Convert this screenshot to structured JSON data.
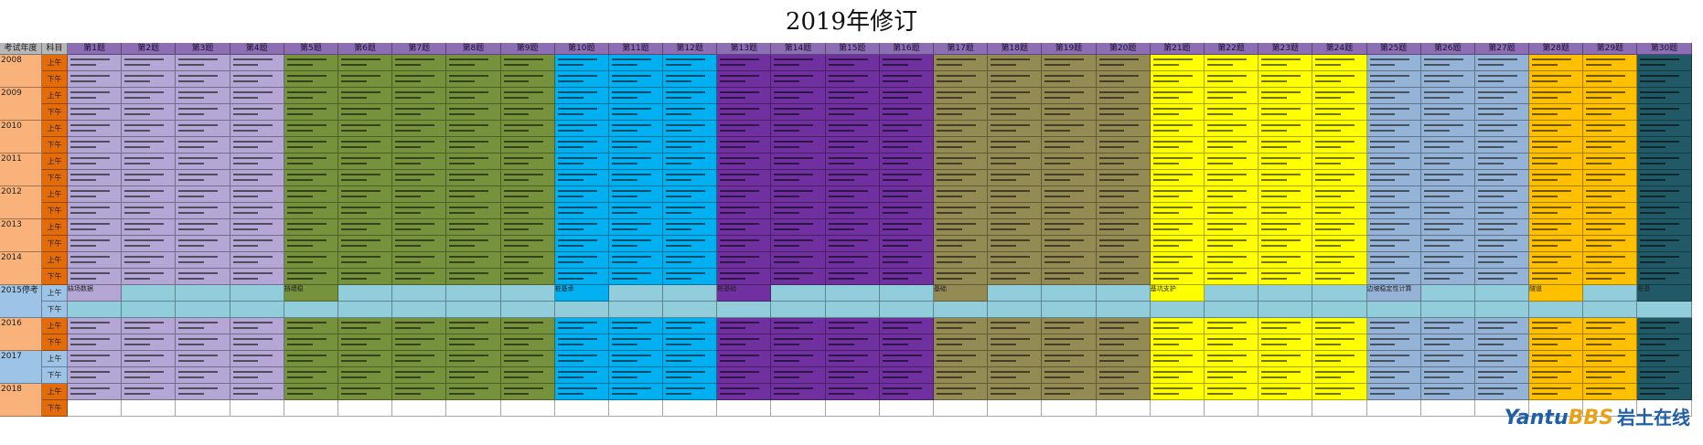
{
  "title": "2019年修订",
  "header": {
    "year_label": "考试年度",
    "subject_label": "科目",
    "questions": [
      "第1题",
      "第2题",
      "第3题",
      "第4题",
      "第5题",
      "第6题",
      "第7题",
      "第8题",
      "第9题",
      "第10题",
      "第11题",
      "第12题",
      "第13题",
      "第14题",
      "第15题",
      "第16题",
      "第17题",
      "第18题",
      "第19题",
      "第20题",
      "第21题",
      "第22题",
      "第23题",
      "第24题",
      "第25题",
      "第26题",
      "第27题",
      "第28题",
      "第29题",
      "第30题"
    ]
  },
  "palette": {
    "lavender": "#b4a7d6",
    "olive": "#76923c",
    "cyan": "#00b0f0",
    "purple": "#7030a0",
    "khaki": "#948a54",
    "yellow": "#ffff00",
    "steel": "#95b3d7",
    "orange": "#ffc000",
    "teal": "#215967",
    "light": "#92cddc",
    "white": "#ffffff"
  },
  "column_groups": [
    "lavender",
    "lavender",
    "lavender",
    "lavender",
    "olive",
    "olive",
    "olive",
    "olive",
    "olive",
    "cyan",
    "cyan",
    "cyan",
    "purple",
    "purple",
    "purple",
    "purple",
    "khaki",
    "khaki",
    "khaki",
    "khaki",
    "yellow",
    "yellow",
    "yellow",
    "yellow",
    "steel",
    "steel",
    "steel",
    "orange",
    "orange",
    "teal"
  ],
  "years": [
    {
      "label": "2008",
      "style": "year",
      "halves": [
        "上午",
        "下午"
      ]
    },
    {
      "label": "2009",
      "style": "year",
      "halves": [
        "上午",
        "下午"
      ]
    },
    {
      "label": "2010",
      "style": "year",
      "halves": [
        "上午",
        "下午"
      ]
    },
    {
      "label": "2011",
      "style": "year",
      "halves": [
        "上午",
        "下午"
      ]
    },
    {
      "label": "2012",
      "style": "year",
      "halves": [
        "上午",
        "下午"
      ]
    },
    {
      "label": "2013",
      "style": "year",
      "halves": [
        "上午",
        "下午"
      ]
    },
    {
      "label": "2014",
      "style": "year",
      "halves": [
        "上午",
        "下午"
      ]
    },
    {
      "label": "2015停考",
      "style": "blue",
      "halves": [
        "上午",
        "下午"
      ]
    },
    {
      "label": "2016",
      "style": "year",
      "halves": [
        "上午",
        "下午"
      ]
    },
    {
      "label": "2017",
      "style": "blue",
      "halves": [
        "上午",
        "下午"
      ]
    },
    {
      "label": "2018",
      "style": "year",
      "halves": [
        "上午",
        "下午"
      ]
    }
  ],
  "row_2015_cells": {
    "upper_text": {
      "1": "缺场数据",
      "5": "挡墙稳",
      "10": "桩基承",
      "13": "桩基础",
      "17": "基础",
      "21": "基坑支护",
      "25": "边坡稳定性计算",
      "28": "隧道",
      "30": "桩基"
    },
    "lower_filled": false
  },
  "row_2018_lower_blank": true,
  "watermark": {
    "part1": "Yantu",
    "part2": "BBS",
    "part3": "岩土在线"
  }
}
